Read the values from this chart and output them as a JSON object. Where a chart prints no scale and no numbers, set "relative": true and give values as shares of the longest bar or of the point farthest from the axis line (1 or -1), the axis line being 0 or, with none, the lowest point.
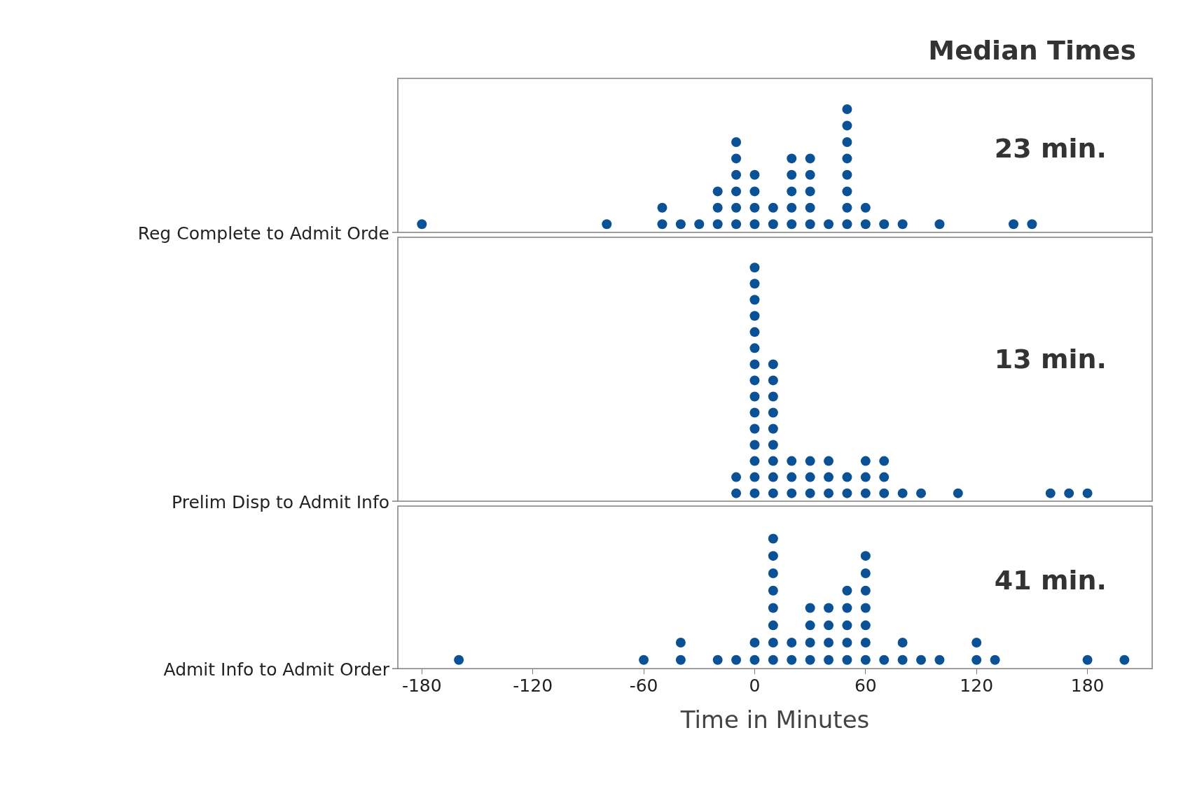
{
  "chart_data": [
    {
      "type": "scatter",
      "title": "Median Times",
      "ylabel": "Reg Complete to Admit Orde",
      "annotations": [
        "23 min."
      ],
      "marker": "circle",
      "tick_labels": false,
      "relative": true,
      "xlim": [
        -193,
        215
      ],
      "xticks": [
        -180,
        -120,
        -60,
        0,
        60,
        120,
        180
      ],
      "series": [
        {
          "color": "#0b5196",
          "x": [
            -180,
            -80,
            -50,
            -50,
            -40,
            -30,
            -20,
            -20,
            -20,
            -10,
            -10,
            -10,
            -10,
            -10,
            -10,
            0,
            0,
            0,
            0,
            10,
            10,
            20,
            20,
            20,
            20,
            20,
            30,
            30,
            30,
            30,
            30,
            40,
            50,
            50,
            50,
            50,
            50,
            50,
            50,
            50,
            60,
            60,
            70,
            80,
            100,
            140,
            150
          ],
          "values": [
            0.067,
            0.067,
            0.067,
            0.2,
            0.067,
            0.067,
            0.067,
            0.2,
            0.333,
            0.067,
            0.2,
            0.333,
            0.467,
            0.6,
            0.733,
            0.067,
            0.2,
            0.333,
            0.467,
            0.067,
            0.2,
            0.067,
            0.2,
            0.333,
            0.467,
            0.6,
            0.067,
            0.2,
            0.333,
            0.467,
            0.6,
            0.067,
            0.067,
            0.2,
            0.333,
            0.467,
            0.6,
            0.733,
            0.867,
            1,
            0.067,
            0.2,
            0.067,
            0.067,
            0.067,
            0.067,
            0.067
          ]
        }
      ]
    },
    {
      "type": "scatter",
      "ylabel": "Prelim Disp to Admit Info",
      "annotations": [
        "13 min."
      ],
      "marker": "circle",
      "tick_labels": false,
      "relative": true,
      "xlim": [
        -193,
        215
      ],
      "xticks": [
        -180,
        -120,
        -60,
        0,
        60,
        120,
        180
      ],
      "series": [
        {
          "color": "#0b5196",
          "x": [
            -10,
            -10,
            0,
            0,
            0,
            0,
            0,
            0,
            0,
            0,
            0,
            0,
            0,
            0,
            0,
            0,
            0,
            10,
            10,
            10,
            10,
            10,
            10,
            10,
            10,
            10,
            20,
            20,
            20,
            30,
            30,
            30,
            40,
            40,
            40,
            50,
            50,
            60,
            60,
            60,
            70,
            70,
            70,
            80,
            90,
            110,
            160,
            170,
            180
          ],
          "values": [
            0.034,
            0.103,
            0.034,
            0.103,
            0.172,
            0.241,
            0.31,
            0.379,
            0.448,
            0.517,
            0.586,
            0.655,
            0.724,
            0.793,
            0.862,
            0.931,
            1,
            0.034,
            0.103,
            0.172,
            0.241,
            0.31,
            0.379,
            0.448,
            0.517,
            0.586,
            0.034,
            0.103,
            0.172,
            0.034,
            0.103,
            0.172,
            0.034,
            0.103,
            0.172,
            0.034,
            0.103,
            0.034,
            0.103,
            0.172,
            0.034,
            0.103,
            0.172,
            0.034,
            0.034,
            0.034,
            0.034,
            0.034,
            0.034
          ]
        }
      ]
    },
    {
      "type": "scatter",
      "ylabel": "Admit Info to Admit Order",
      "xlabel": "Time in Minutes",
      "annotations": [
        "41 min."
      ],
      "marker": "circle",
      "tick_labels": "x",
      "relative": true,
      "xlim": [
        -193,
        215
      ],
      "xticks": [
        -180,
        -120,
        -60,
        0,
        60,
        120,
        180
      ],
      "series": [
        {
          "color": "#0b5196",
          "x": [
            -160,
            -60,
            -40,
            -40,
            -20,
            -10,
            0,
            0,
            10,
            10,
            10,
            10,
            10,
            10,
            10,
            10,
            20,
            20,
            30,
            30,
            30,
            30,
            40,
            40,
            40,
            40,
            50,
            50,
            50,
            50,
            50,
            60,
            60,
            60,
            60,
            60,
            60,
            60,
            70,
            80,
            80,
            90,
            100,
            120,
            120,
            130,
            180,
            200
          ],
          "values": [
            0.067,
            0.067,
            0.067,
            0.2,
            0.067,
            0.067,
            0.067,
            0.2,
            0.067,
            0.2,
            0.333,
            0.467,
            0.6,
            0.733,
            0.867,
            1,
            0.067,
            0.2,
            0.067,
            0.2,
            0.333,
            0.467,
            0.067,
            0.2,
            0.333,
            0.467,
            0.067,
            0.2,
            0.333,
            0.467,
            0.6,
            0.067,
            0.2,
            0.333,
            0.467,
            0.6,
            0.733,
            0.867,
            0.067,
            0.067,
            0.2,
            0.067,
            0.067,
            0.067,
            0.2,
            0.067,
            0.067,
            0.067
          ]
        }
      ]
    }
  ]
}
